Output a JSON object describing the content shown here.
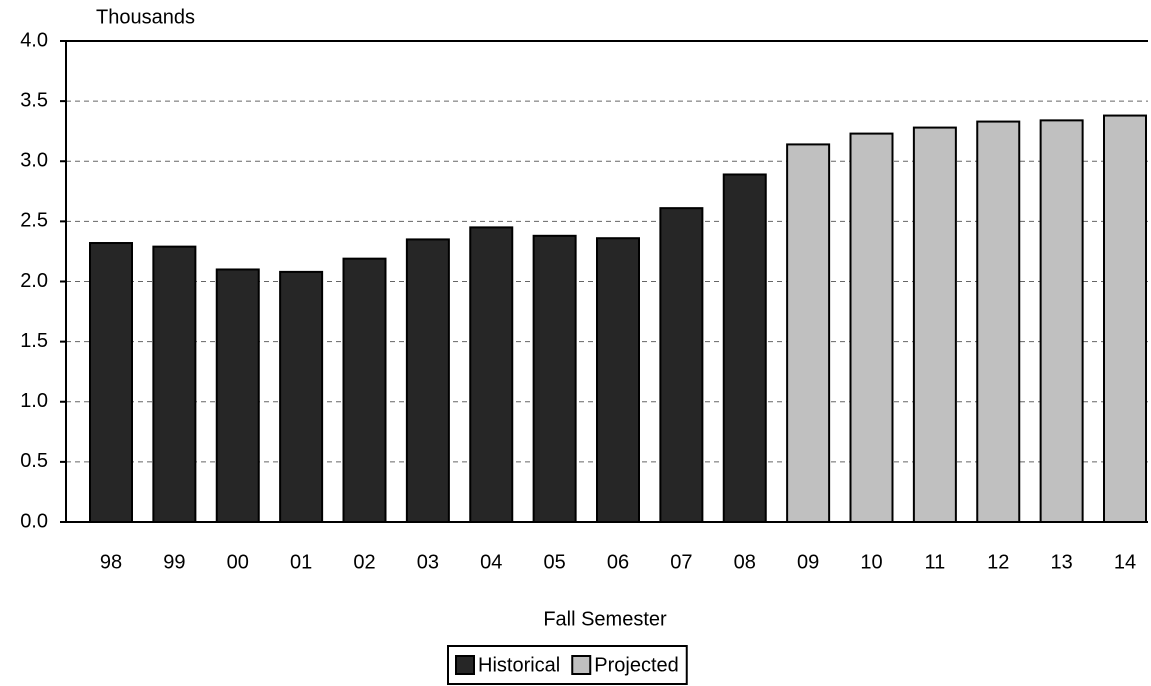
{
  "chart_data": {
    "type": "bar",
    "y_axis_label": "Thousands",
    "x_axis_label": "Fall Semester",
    "categories": [
      "98",
      "99",
      "00",
      "01",
      "02",
      "03",
      "04",
      "05",
      "06",
      "07",
      "08",
      "09",
      "10",
      "11",
      "12",
      "13",
      "14"
    ],
    "series": [
      {
        "name": "Historical",
        "color": "#262626",
        "values": [
          2.32,
          2.29,
          2.1,
          2.08,
          2.19,
          2.35,
          2.45,
          2.38,
          2.36,
          2.61,
          2.89,
          null,
          null,
          null,
          null,
          null,
          null
        ]
      },
      {
        "name": "Projected",
        "color": "#c0c0c0",
        "values": [
          null,
          null,
          null,
          null,
          null,
          null,
          null,
          null,
          null,
          null,
          null,
          3.14,
          3.23,
          3.28,
          3.33,
          3.34,
          3.38
        ]
      }
    ],
    "ylim": [
      0,
      4
    ],
    "yticks": [
      {
        "value": 0,
        "label": "0.0"
      },
      0.5,
      {
        "value": 1,
        "label": "1.0"
      },
      1.5,
      {
        "value": 2,
        "label": "2.0"
      },
      2.5,
      {
        "value": 3,
        "label": "3.0"
      },
      3.5,
      {
        "value": 4,
        "label": "4.0"
      }
    ],
    "grid": true,
    "legend": "bottom"
  }
}
